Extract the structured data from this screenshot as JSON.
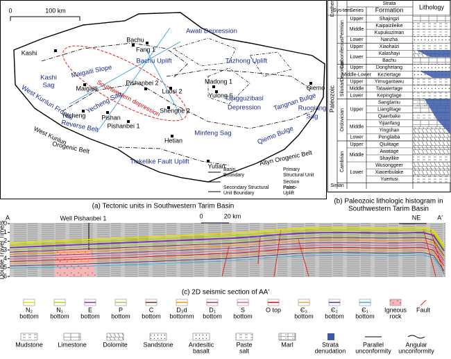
{
  "map": {
    "caption": "(a) Tectonic units in Southwestern Tarim Basin",
    "scale": [
      "0",
      "100 km"
    ],
    "labels": [
      "Awati Depression",
      "Bachu Uplift",
      "Bachu",
      "Fang 1",
      "Kashi",
      "Kashi",
      "Sag",
      "Maigaiti Slope",
      "Maigaiti",
      "Southwestern depression",
      "Pishanbei 2",
      "Luosi 2",
      "Madong 1",
      "Yulong 6",
      "Tazhong Uplift",
      "Tangguzibasi",
      "Depression",
      "Tangnan Bulge",
      "Qiemo",
      "Ruoqiang",
      "Sag",
      "West Kunlun Frontal",
      "Reverse Belt",
      "Yecheng Sag",
      "Yecheng",
      "Pishan",
      "Shenghe 2",
      "Pishanbei 1",
      "Hetian",
      "Minfeng Sag",
      "Qiemo Bulge",
      "Altyn Orogenic Belt",
      "West Kunlun",
      "Orogenic Belt",
      "Tiekelike Fault Uplift",
      "Yutian"
    ],
    "legend": [
      [
        "Basin",
        "Boundary"
      ],
      [
        "Primary",
        "Structural Unit"
      ],
      [
        "Secondary Structural",
        "Unit Boundary"
      ],
      [
        "Paleo-",
        "Uplift"
      ],
      [
        "Section",
        "Point"
      ]
    ]
  },
  "column": {
    "caption": [
      "(b) Paleozoic lithologic histogram in",
      "Southwestern Tarim Basin"
    ],
    "header": {
      "strata": "Strata",
      "erathem": "Erathem",
      "system": "Sys-tem",
      "series": "Series",
      "formation": "Formation",
      "lithology": "Lithology"
    },
    "erathem": "Paleozoic",
    "systems": [
      {
        "name": "Permian",
        "series": [
          {
            "name": "Upper",
            "formations": [
              "Shajingzi"
            ]
          },
          {
            "name": "Middle",
            "formations": [
              "Kaipaizileike",
              "Kupukuziman"
            ]
          },
          {
            "name": "Lower",
            "formations": [
              "Nanzha"
            ]
          }
        ]
      },
      {
        "name": "Carboniferous",
        "series": [
          {
            "name": "Upper",
            "formations": [
              "Xiaohaizi"
            ]
          },
          {
            "name": "Lower",
            "formations": [
              "Kalashayi",
              "Bachu"
            ]
          }
        ]
      },
      {
        "name": "Devonian",
        "series": [
          {
            "name": "Upper",
            "formations": [
              "Donghetang"
            ]
          },
          {
            "name": "Middle-Lower",
            "formations": [
              "Keziertage"
            ]
          }
        ]
      },
      {
        "name": "Silurian",
        "series": [
          {
            "name": "Upper",
            "formations": [
              "Yimugantawu"
            ]
          },
          {
            "name": "Middle",
            "formations": [
              "Tataaiertage"
            ]
          },
          {
            "name": "Lower",
            "formations": [
              "Kepingtage"
            ]
          }
        ]
      },
      {
        "name": "Ordovician",
        "series": [
          {
            "name": "Upper",
            "formations": [
              "Sangtamu",
              "Lianglitage",
              "Qiaerbake"
            ]
          },
          {
            "name": "Middle",
            "formations": [
              "Yijianfang",
              "Yingshan"
            ]
          },
          {
            "name": "Lower",
            "formations": [
              "Penglaiba"
            ]
          }
        ]
      },
      {
        "name": "Cambrian",
        "series": [
          {
            "name": "Upper",
            "formations": [
              "Qiulitage"
            ]
          },
          {
            "name": "Middle",
            "formations": [
              "Awatage",
              "Shayilike"
            ]
          },
          {
            "name": "Lower",
            "formations": [
              "Wusonggeer",
              "Xiaoerbulake",
              "Yuertusi"
            ]
          }
        ]
      }
    ],
    "base": "Sinian"
  },
  "seismic": {
    "caption": "(c) 2D seismic section of AA′",
    "start": "A",
    "end": "A′",
    "well": "Well Pishanbei 1",
    "scale": [
      "0",
      "20 km"
    ],
    "direction": "NE",
    "ylabel": "Double Travel Time/s",
    "ylim": [
      0,
      6
    ],
    "yticks": [
      0,
      1,
      2,
      3,
      4,
      5,
      6
    ]
  },
  "legend": {
    "horizons": [
      {
        "label": [
          "N₂",
          "bottom"
        ],
        "color": "#e6dc00"
      },
      {
        "label": [
          "N₁",
          "bottom"
        ],
        "color": "#b8d400"
      },
      {
        "label": [
          "E",
          "bottom"
        ],
        "color": "#7b2fa0"
      },
      {
        "label": [
          "P",
          "bottom"
        ],
        "color": "#9acd32"
      },
      {
        "label": [
          "C",
          "bottom"
        ],
        "color": "#8b1a1a"
      },
      {
        "label": [
          "D₃d",
          "bottomm"
        ],
        "color": "#ff8c00"
      },
      {
        "label": [
          "D₁",
          "bottom"
        ],
        "color": "#a0306a"
      },
      {
        "label": [
          "S",
          "bottom"
        ],
        "color": "#e06080"
      },
      {
        "label": [
          "O top"
        ],
        "color": "#e00000"
      },
      {
        "label": [
          "Є₃",
          "bottom"
        ],
        "color": "#f0a030"
      },
      {
        "label": [
          "Є₂",
          "bottom"
        ],
        "color": "#5a2a7a"
      },
      {
        "label": [
          "Є₁",
          "bottom"
        ],
        "color": "#30b0d0"
      }
    ],
    "others": [
      [
        "Igneous",
        "rock"
      ],
      [
        "Fault"
      ]
    ],
    "lithologies": [
      [
        "Mudstone"
      ],
      [
        "Limestone"
      ],
      [
        "Dolomite"
      ],
      [
        "Sandstone"
      ],
      [
        "Andesitic",
        "basalt"
      ],
      [
        "Paste",
        "salt"
      ],
      [
        "Marl"
      ],
      [
        "Strata",
        "denudation"
      ],
      [
        "Parallel",
        "unconformity"
      ],
      [
        "Angular",
        "unconformity"
      ]
    ]
  }
}
